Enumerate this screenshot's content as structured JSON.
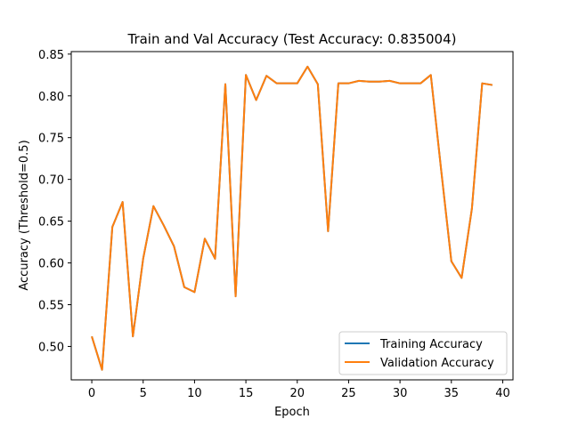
{
  "chart_data": {
    "type": "line",
    "title": "Train and Val Accuracy (Test Accuracy: 0.835004)",
    "xlabel": "Epoch",
    "ylabel": "Accuracy (Threshold=0.5)",
    "xlim": [
      -2,
      41
    ],
    "ylim": [
      0.46,
      0.853
    ],
    "xticks": [
      0,
      5,
      10,
      15,
      20,
      25,
      30,
      35,
      40
    ],
    "yticks": [
      0.5,
      0.55,
      0.6,
      0.65,
      0.7,
      0.75,
      0.8,
      0.85
    ],
    "ytick_labels": [
      "0.50",
      "0.55",
      "0.60",
      "0.65",
      "0.70",
      "0.75",
      "0.80",
      "0.85"
    ],
    "grid": false,
    "legend_position": "lower-right",
    "x": [
      0,
      1,
      2,
      3,
      4,
      5,
      6,
      7,
      8,
      9,
      10,
      11,
      12,
      13,
      14,
      15,
      16,
      17,
      18,
      19,
      20,
      21,
      22,
      23,
      24,
      25,
      26,
      27,
      28,
      29,
      30,
      31,
      32,
      33,
      34,
      35,
      36,
      37,
      38,
      39
    ],
    "series": [
      {
        "name": "Training Accuracy",
        "color": "#1f77b4",
        "values": [
          0.512,
          0.472,
          0.643,
          0.673,
          0.512,
          0.605,
          0.668,
          0.645,
          0.62,
          0.571,
          0.565,
          0.629,
          0.605,
          0.814,
          0.56,
          0.825,
          0.795,
          0.824,
          0.815,
          0.815,
          0.815,
          0.835,
          0.814,
          0.638,
          0.815,
          0.815,
          0.818,
          0.817,
          0.817,
          0.818,
          0.815,
          0.815,
          0.815,
          0.825,
          0.712,
          0.602,
          0.582,
          0.665,
          0.815,
          0.813
        ]
      },
      {
        "name": "Validation Accuracy",
        "color": "#ff7f0e",
        "values": [
          0.512,
          0.472,
          0.643,
          0.673,
          0.512,
          0.605,
          0.668,
          0.645,
          0.62,
          0.571,
          0.565,
          0.629,
          0.605,
          0.814,
          0.56,
          0.825,
          0.795,
          0.824,
          0.815,
          0.815,
          0.815,
          0.835,
          0.814,
          0.638,
          0.815,
          0.815,
          0.818,
          0.817,
          0.817,
          0.818,
          0.815,
          0.815,
          0.815,
          0.825,
          0.712,
          0.602,
          0.582,
          0.665,
          0.815,
          0.813
        ]
      }
    ]
  }
}
